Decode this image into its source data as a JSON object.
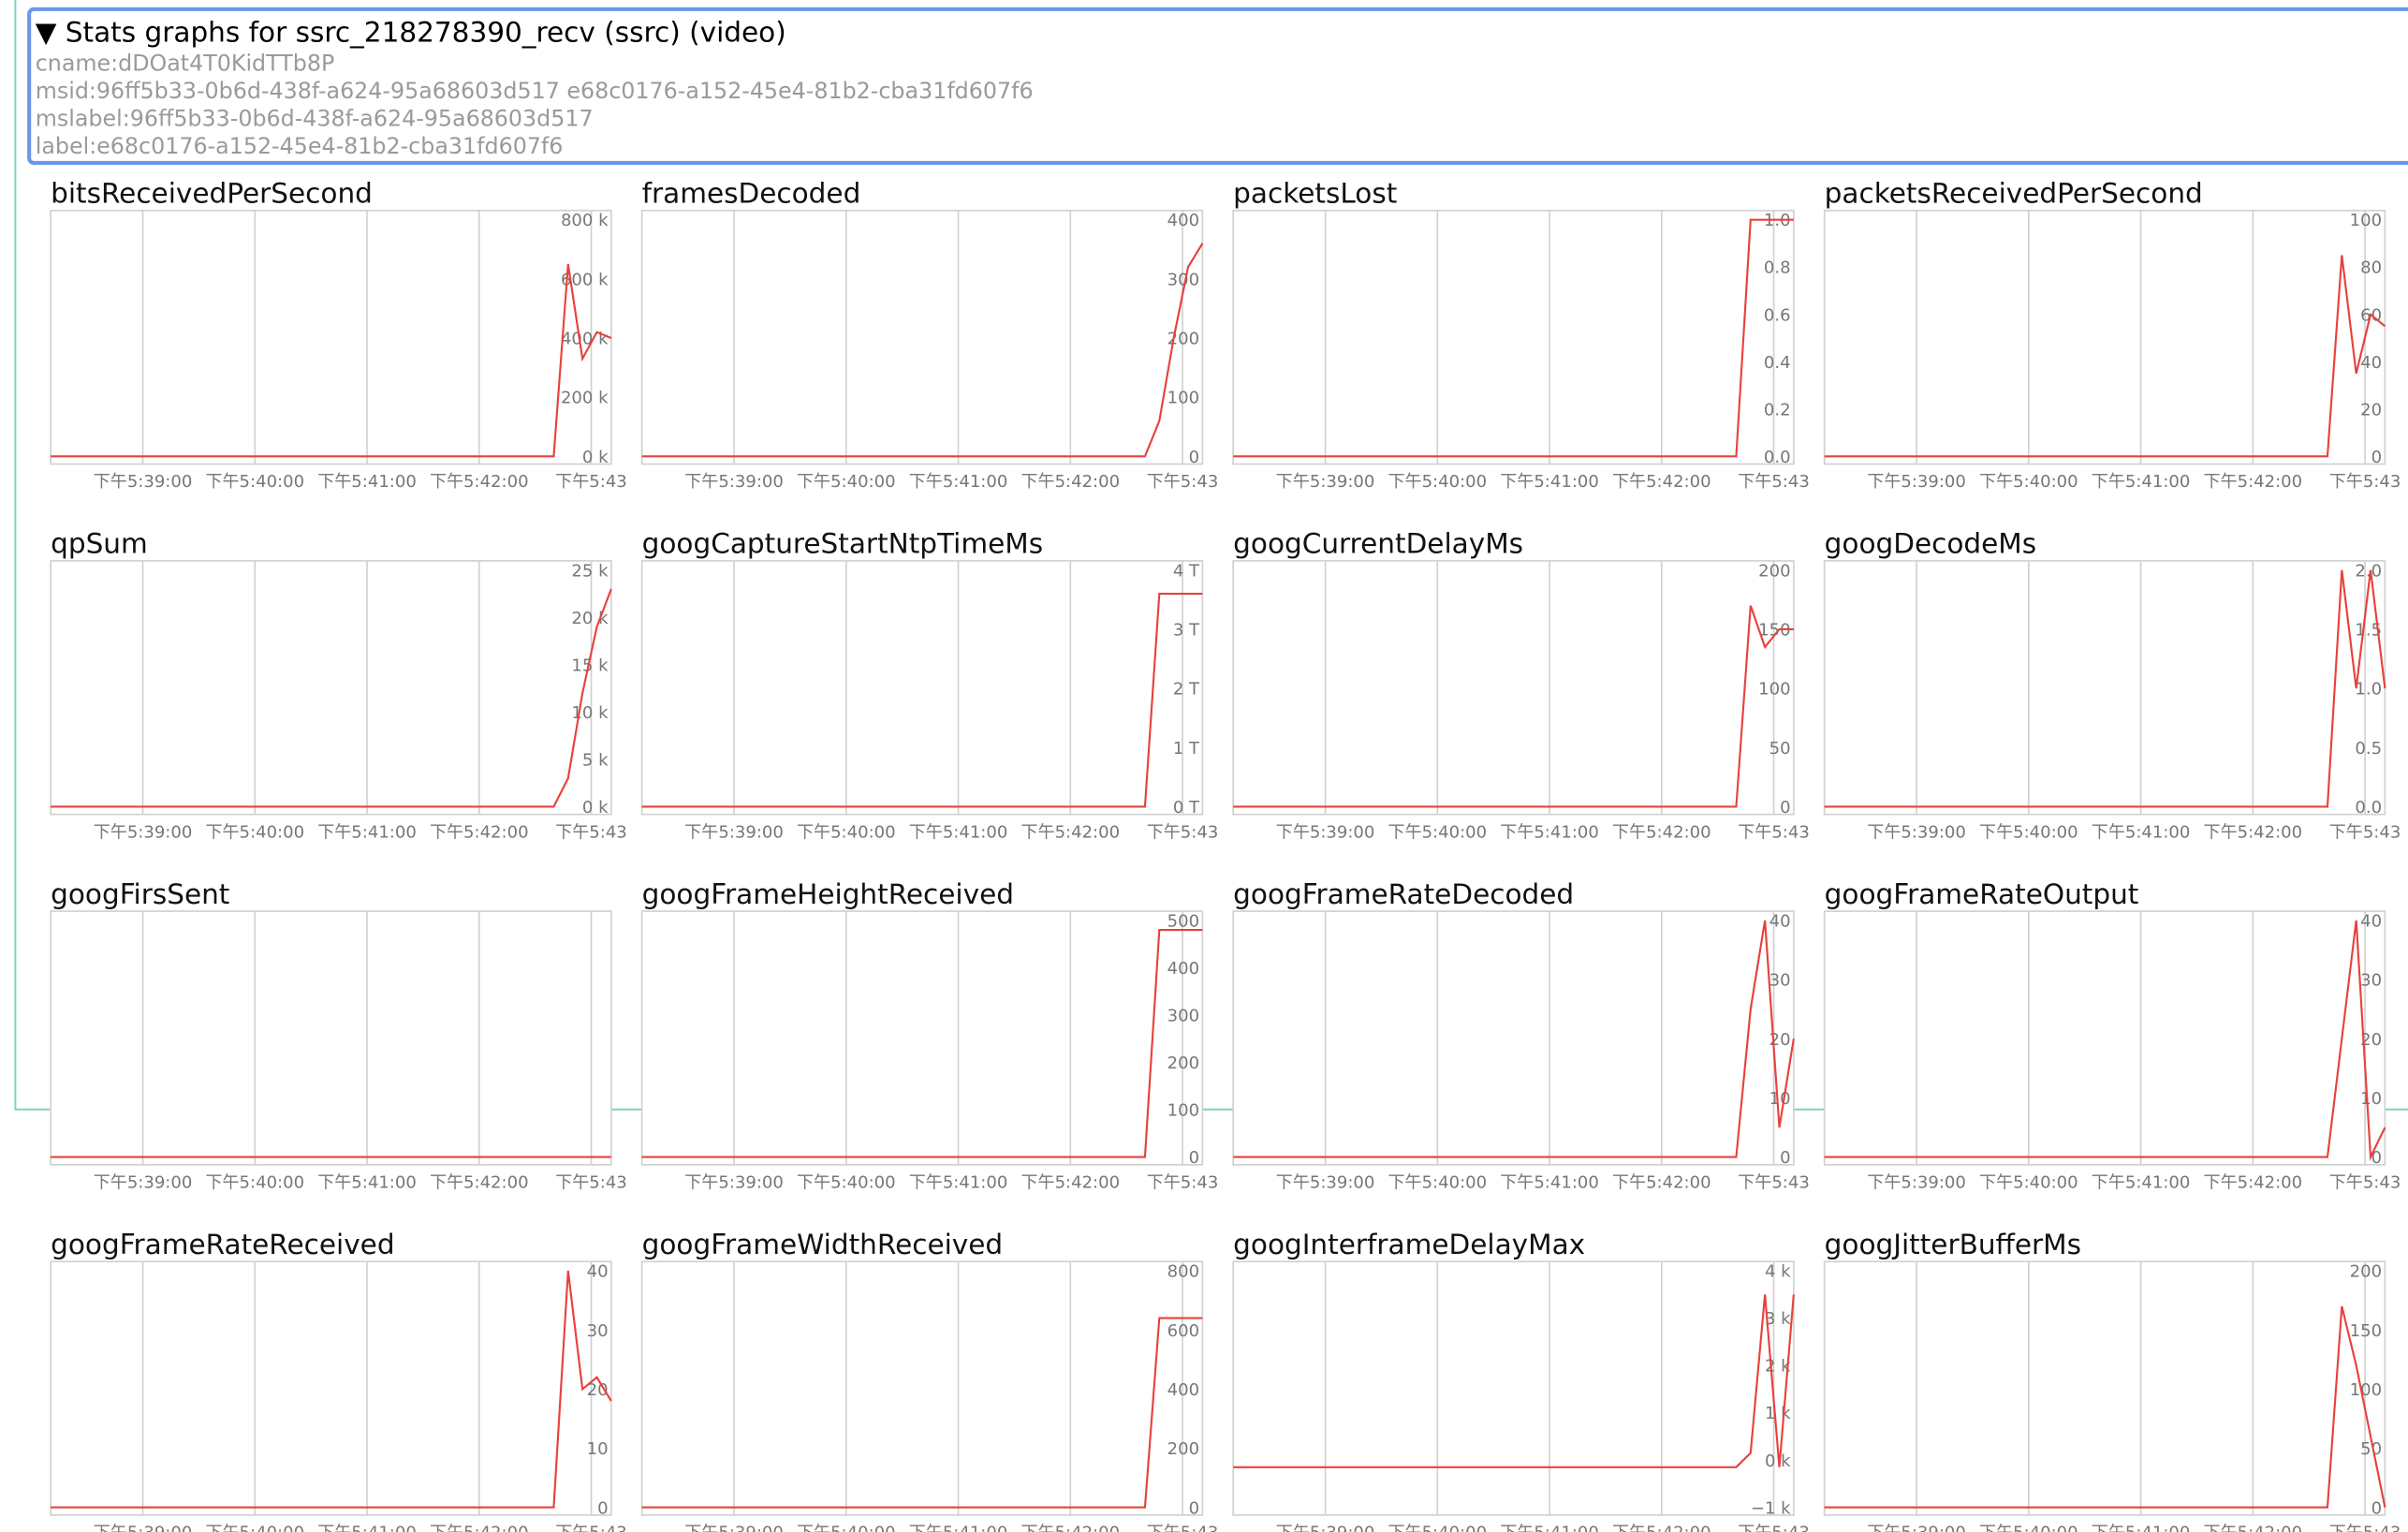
{
  "header": {
    "title": "▼ Stats graphs for ssrc_218278390_recv (ssrc) (video)",
    "lines": [
      "cname:dDOat4T0KidTTb8P",
      "msid:96ff5b33-0b6d-438f-a624-95a68603d517 e68c0176-a152-45e4-81b2-cba31fd607f6",
      "mslabel:96ff5b33-0b6d-438f-a624-95a68603d517",
      "label:e68c0176-a152-45e4-81b2-cba31fd607f6"
    ]
  },
  "xticks": [
    "下午5:39:00",
    "下午5:40:00",
    "下午5:41:00",
    "下午5:42:00",
    "下午5:43"
  ],
  "line_color": "#e8413c",
  "graphs": [
    {
      "title": "bitsReceivedPerSecond",
      "ylim": [
        0,
        800000
      ],
      "yticks": [
        {
          "value": 0,
          "label": "0 k"
        },
        {
          "value": 200000,
          "label": "200 k"
        },
        {
          "value": 400000,
          "label": "400 k"
        },
        {
          "value": 600000,
          "label": "600 k"
        },
        {
          "value": 800000,
          "label": "800 k"
        }
      ],
      "values": [
        0,
        0,
        0,
        0,
        0,
        0,
        0,
        0,
        0,
        0,
        0,
        0,
        0,
        0,
        0,
        0,
        0,
        0,
        0,
        0,
        0,
        0,
        0,
        0,
        0,
        0,
        0,
        0,
        0,
        0,
        0,
        0,
        0,
        0,
        0,
        0,
        650000,
        330000,
        420000,
        400000
      ]
    },
    {
      "title": "framesDecoded",
      "ylim": [
        0,
        400
      ],
      "yticks": [
        0,
        100,
        200,
        300,
        400
      ],
      "values": [
        0,
        0,
        0,
        0,
        0,
        0,
        0,
        0,
        0,
        0,
        0,
        0,
        0,
        0,
        0,
        0,
        0,
        0,
        0,
        0,
        0,
        0,
        0,
        0,
        0,
        0,
        0,
        0,
        0,
        0,
        0,
        0,
        0,
        0,
        0,
        0,
        60,
        200,
        320,
        360
      ]
    },
    {
      "title": "packetsLost",
      "ylim": [
        0,
        1
      ],
      "yticks": [
        {
          "value": 0,
          "label": "0.0"
        },
        0.2,
        0.4,
        0.6,
        0.8,
        {
          "value": 1,
          "label": "1.0"
        }
      ],
      "values": [
        0,
        0,
        0,
        0,
        0,
        0,
        0,
        0,
        0,
        0,
        0,
        0,
        0,
        0,
        0,
        0,
        0,
        0,
        0,
        0,
        0,
        0,
        0,
        0,
        0,
        0,
        0,
        0,
        0,
        0,
        0,
        0,
        0,
        0,
        0,
        0,
        1,
        1,
        1,
        1
      ]
    },
    {
      "title": "packetsReceivedPerSecond",
      "ylim": [
        0,
        100
      ],
      "yticks": [
        0,
        20,
        40,
        60,
        80,
        100
      ],
      "values": [
        0,
        0,
        0,
        0,
        0,
        0,
        0,
        0,
        0,
        0,
        0,
        0,
        0,
        0,
        0,
        0,
        0,
        0,
        0,
        0,
        0,
        0,
        0,
        0,
        0,
        0,
        0,
        0,
        0,
        0,
        0,
        0,
        0,
        0,
        0,
        0,
        85,
        35,
        60,
        55
      ]
    },
    {
      "title": "qpSum",
      "ylim": [
        0,
        25000
      ],
      "yticks": [
        {
          "value": 0,
          "label": "0 k"
        },
        {
          "value": 5000,
          "label": "5 k"
        },
        {
          "value": 10000,
          "label": "10 k"
        },
        {
          "value": 15000,
          "label": "15 k"
        },
        {
          "value": 20000,
          "label": "20 k"
        },
        {
          "value": 25000,
          "label": "25 k"
        }
      ],
      "values": [
        0,
        0,
        0,
        0,
        0,
        0,
        0,
        0,
        0,
        0,
        0,
        0,
        0,
        0,
        0,
        0,
        0,
        0,
        0,
        0,
        0,
        0,
        0,
        0,
        0,
        0,
        0,
        0,
        0,
        0,
        0,
        0,
        0,
        0,
        0,
        0,
        3000,
        12000,
        19000,
        23000
      ]
    },
    {
      "title": "googCaptureStartNtpTimeMs",
      "ylim": [
        0,
        4000000000000
      ],
      "yticks": [
        {
          "value": 0,
          "label": "0 T"
        },
        {
          "value": 1000000000000,
          "label": "1 T"
        },
        {
          "value": 2000000000000,
          "label": "2 T"
        },
        {
          "value": 3000000000000,
          "label": "3 T"
        },
        {
          "value": 4000000000000,
          "label": "4 T"
        }
      ],
      "values": [
        0,
        0,
        0,
        0,
        0,
        0,
        0,
        0,
        0,
        0,
        0,
        0,
        0,
        0,
        0,
        0,
        0,
        0,
        0,
        0,
        0,
        0,
        0,
        0,
        0,
        0,
        0,
        0,
        0,
        0,
        0,
        0,
        0,
        0,
        0,
        0,
        3600000000000,
        3600000000000,
        3600000000000,
        3600000000000
      ]
    },
    {
      "title": "googCurrentDelayMs",
      "ylim": [
        0,
        200
      ],
      "yticks": [
        0,
        50,
        100,
        150,
        200
      ],
      "values": [
        0,
        0,
        0,
        0,
        0,
        0,
        0,
        0,
        0,
        0,
        0,
        0,
        0,
        0,
        0,
        0,
        0,
        0,
        0,
        0,
        0,
        0,
        0,
        0,
        0,
        0,
        0,
        0,
        0,
        0,
        0,
        0,
        0,
        0,
        0,
        0,
        170,
        135,
        150,
        150
      ]
    },
    {
      "title": "googDecodeMs",
      "ylim": [
        0,
        2
      ],
      "yticks": [
        {
          "value": 0,
          "label": "0.0"
        },
        0.5,
        {
          "value": 1,
          "label": "1.0"
        },
        1.5,
        {
          "value": 2,
          "label": "2.0"
        }
      ],
      "values": [
        0,
        0,
        0,
        0,
        0,
        0,
        0,
        0,
        0,
        0,
        0,
        0,
        0,
        0,
        0,
        0,
        0,
        0,
        0,
        0,
        0,
        0,
        0,
        0,
        0,
        0,
        0,
        0,
        0,
        0,
        0,
        0,
        0,
        0,
        0,
        0,
        2,
        1,
        2,
        1
      ]
    },
    {
      "title": "googFirsSent",
      "ylim": [
        0,
        1
      ],
      "yticks": [],
      "values": [
        0,
        0,
        0,
        0,
        0,
        0,
        0,
        0,
        0,
        0,
        0,
        0,
        0,
        0,
        0,
        0,
        0,
        0,
        0,
        0,
        0,
        0,
        0,
        0,
        0,
        0,
        0,
        0,
        0,
        0,
        0,
        0,
        0,
        0,
        0,
        0,
        0,
        0,
        0,
        0
      ]
    },
    {
      "title": "googFrameHeightReceived",
      "ylim": [
        0,
        500
      ],
      "yticks": [
        0,
        100,
        200,
        300,
        400,
        500
      ],
      "values": [
        0,
        0,
        0,
        0,
        0,
        0,
        0,
        0,
        0,
        0,
        0,
        0,
        0,
        0,
        0,
        0,
        0,
        0,
        0,
        0,
        0,
        0,
        0,
        0,
        0,
        0,
        0,
        0,
        0,
        0,
        0,
        0,
        0,
        0,
        0,
        0,
        480,
        480,
        480,
        480
      ]
    },
    {
      "title": "googFrameRateDecoded",
      "ylim": [
        0,
        40
      ],
      "yticks": [
        0,
        10,
        20,
        30,
        40
      ],
      "values": [
        0,
        0,
        0,
        0,
        0,
        0,
        0,
        0,
        0,
        0,
        0,
        0,
        0,
        0,
        0,
        0,
        0,
        0,
        0,
        0,
        0,
        0,
        0,
        0,
        0,
        0,
        0,
        0,
        0,
        0,
        0,
        0,
        0,
        0,
        0,
        0,
        25,
        40,
        5,
        20
      ]
    },
    {
      "title": "googFrameRateOutput",
      "ylim": [
        0,
        40
      ],
      "yticks": [
        0,
        10,
        20,
        30,
        40
      ],
      "values": [
        0,
        0,
        0,
        0,
        0,
        0,
        0,
        0,
        0,
        0,
        0,
        0,
        0,
        0,
        0,
        0,
        0,
        0,
        0,
        0,
        0,
        0,
        0,
        0,
        0,
        0,
        0,
        0,
        0,
        0,
        0,
        0,
        0,
        0,
        0,
        0,
        20,
        40,
        0,
        5
      ]
    },
    {
      "title": "googFrameRateReceived",
      "ylim": [
        0,
        40
      ],
      "yticks": [
        0,
        10,
        20,
        30,
        40
      ],
      "values": [
        0,
        0,
        0,
        0,
        0,
        0,
        0,
        0,
        0,
        0,
        0,
        0,
        0,
        0,
        0,
        0,
        0,
        0,
        0,
        0,
        0,
        0,
        0,
        0,
        0,
        0,
        0,
        0,
        0,
        0,
        0,
        0,
        0,
        0,
        0,
        0,
        40,
        20,
        22,
        18
      ]
    },
    {
      "title": "googFrameWidthReceived",
      "ylim": [
        0,
        800
      ],
      "yticks": [
        0,
        200,
        400,
        600,
        800
      ],
      "values": [
        0,
        0,
        0,
        0,
        0,
        0,
        0,
        0,
        0,
        0,
        0,
        0,
        0,
        0,
        0,
        0,
        0,
        0,
        0,
        0,
        0,
        0,
        0,
        0,
        0,
        0,
        0,
        0,
        0,
        0,
        0,
        0,
        0,
        0,
        0,
        0,
        640,
        640,
        640,
        640
      ]
    },
    {
      "title": "googInterframeDelayMax",
      "ylim": [
        -1000,
        4000
      ],
      "yticks": [
        {
          "value": -1000,
          "label": "−1 k"
        },
        {
          "value": 0,
          "label": "0 k"
        },
        {
          "value": 1000,
          "label": "1 k"
        },
        {
          "value": 2000,
          "label": "2 k"
        },
        {
          "value": 3000,
          "label": "3 k"
        },
        {
          "value": 4000,
          "label": "4 k"
        }
      ],
      "values": [
        -150,
        -150,
        -150,
        -150,
        -150,
        -150,
        -150,
        -150,
        -150,
        -150,
        -150,
        -150,
        -150,
        -150,
        -150,
        -150,
        -150,
        -150,
        -150,
        -150,
        -150,
        -150,
        -150,
        -150,
        -150,
        -150,
        -150,
        -150,
        -150,
        -150,
        -150,
        -150,
        -150,
        -150,
        -150,
        -150,
        150,
        3500,
        -150,
        3500
      ]
    },
    {
      "title": "googJitterBufferMs",
      "ylim": [
        0,
        200
      ],
      "yticks": [
        0,
        50,
        100,
        150,
        200
      ],
      "values": [
        0,
        0,
        0,
        0,
        0,
        0,
        0,
        0,
        0,
        0,
        0,
        0,
        0,
        0,
        0,
        0,
        0,
        0,
        0,
        0,
        0,
        0,
        0,
        0,
        0,
        0,
        0,
        0,
        0,
        0,
        0,
        0,
        0,
        0,
        0,
        0,
        170,
        120,
        60,
        0
      ]
    }
  ]
}
